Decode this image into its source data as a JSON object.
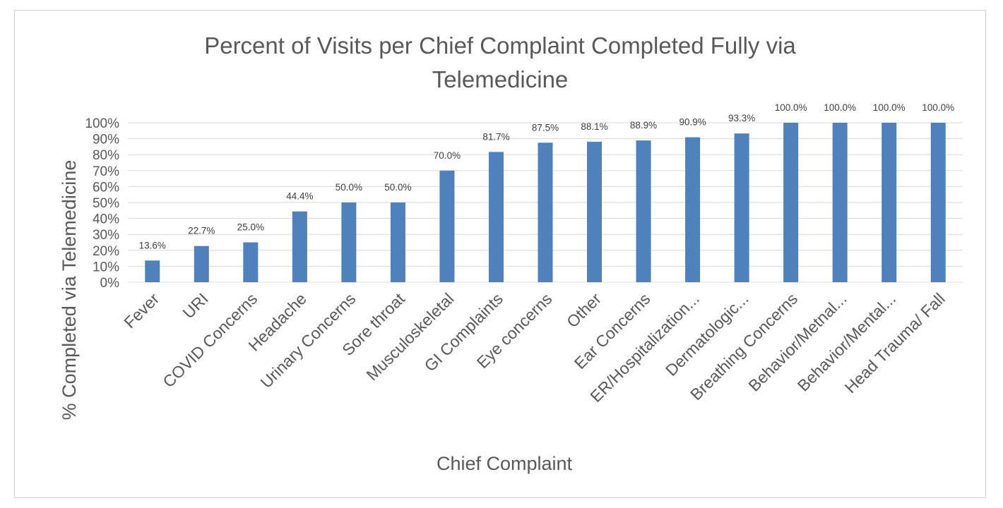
{
  "chart_data": {
    "type": "bar",
    "title": "Percent of Visits per Chief Complaint Completed Fully via Telemedicine",
    "title_lines": [
      "Percent of Visits per Chief Complaint Completed Fully via",
      "Telemedicine"
    ],
    "xlabel": "Chief Complaint",
    "ylabel": "% Completed via Telemedicine",
    "ylim": [
      0,
      100
    ],
    "yticks": [
      "0%",
      "10%",
      "20%",
      "30%",
      "40%",
      "50%",
      "60%",
      "70%",
      "80%",
      "90%",
      "100%"
    ],
    "grid": true,
    "legend": "none",
    "bar_color": "#4f81bd",
    "categories": [
      "Fever",
      "URI",
      "COVID Concerns",
      "Headache",
      "Urinary Concerns",
      "Sore throat",
      "Musculoskeletal",
      "GI Complaints",
      "Eye concerns",
      "Other",
      "Ear Concerns",
      "ER/Hospitalization...",
      "Dermatologic...",
      "Breathing Concerns",
      "Behavior/Metnal...",
      "Behavior/Mental...",
      "Head Trauma/ Fall"
    ],
    "values": [
      13.6,
      22.7,
      25.0,
      44.4,
      50.0,
      50.0,
      70.0,
      81.7,
      87.5,
      88.1,
      88.9,
      90.9,
      93.3,
      100.0,
      100.0,
      100.0,
      100.0
    ],
    "data_labels": [
      "13.6%",
      "22.7%",
      "25.0%",
      "44.4%",
      "50.0%",
      "50.0%",
      "70.0%",
      "81.7%",
      "87.5%",
      "88.1%",
      "88.9%",
      "90.9%",
      "93.3%",
      "100.0%",
      "100.0%",
      "100.0%",
      "100.0%"
    ]
  }
}
